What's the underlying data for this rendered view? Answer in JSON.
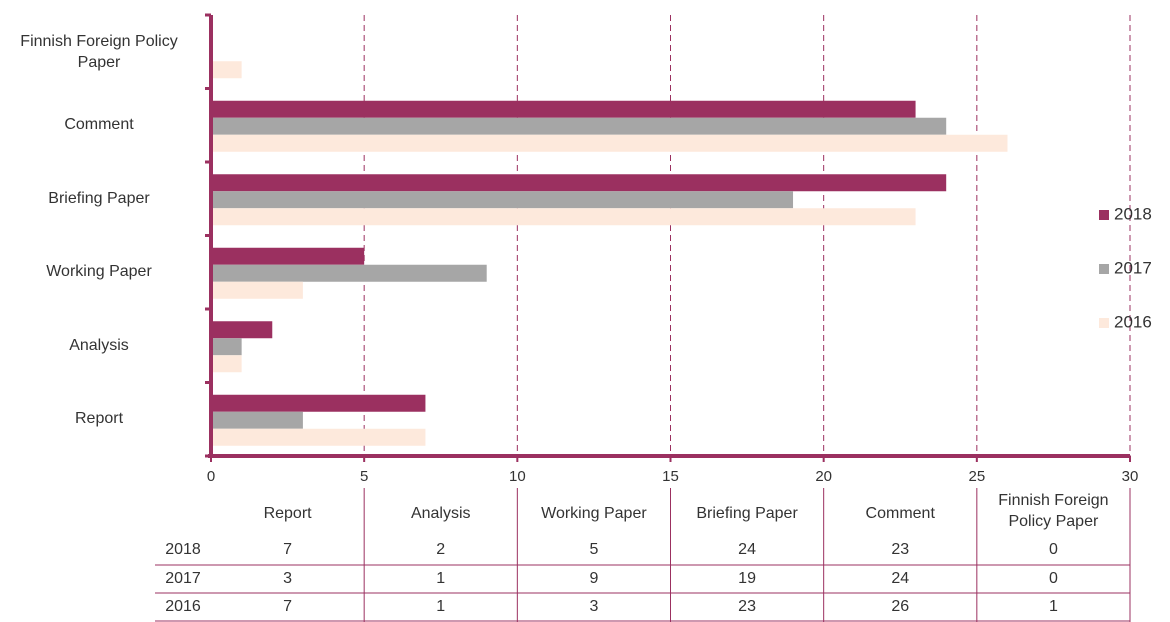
{
  "chart_data": {
    "type": "bar",
    "orientation": "horizontal",
    "categories": [
      "Report",
      "Analysis",
      "Working Paper",
      "Briefing Paper",
      "Comment",
      "Finnish Foreign Policy Paper"
    ],
    "series": [
      {
        "name": "2018",
        "color": "#9b3060",
        "values": [
          7,
          2,
          5,
          24,
          23,
          0
        ]
      },
      {
        "name": "2017",
        "color": "#a6a6a6",
        "values": [
          3,
          1,
          9,
          19,
          24,
          0
        ]
      },
      {
        "name": "2016",
        "color": "#fde9dc",
        "values": [
          7,
          1,
          3,
          23,
          26,
          1
        ]
      }
    ],
    "xlim": [
      0,
      30
    ],
    "xticks": [
      0,
      5,
      10,
      15,
      20,
      25,
      30
    ],
    "grid": true,
    "legend": "right",
    "data_table": true
  }
}
